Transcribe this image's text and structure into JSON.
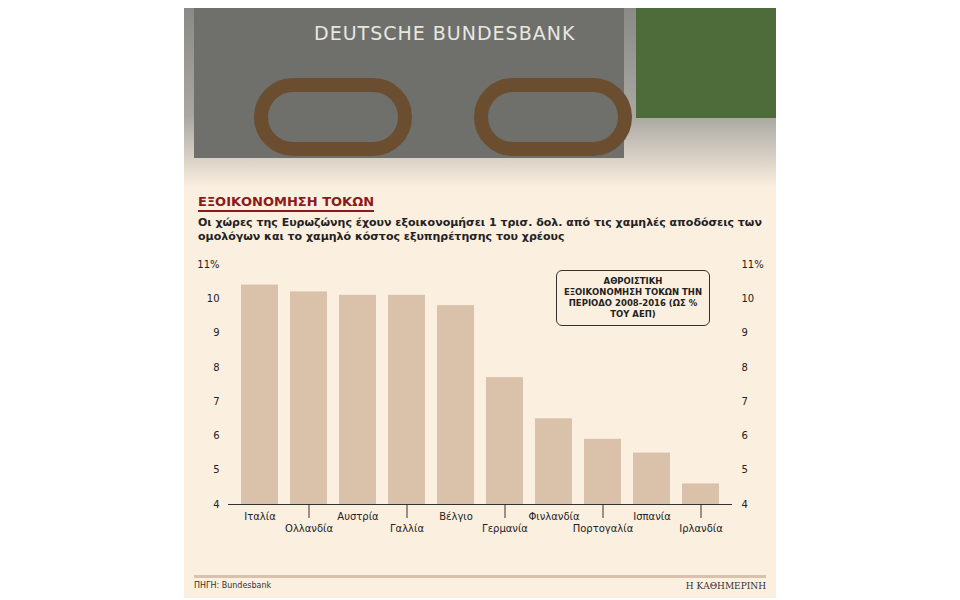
{
  "chart_data": {
    "type": "bar",
    "title": "ΕΞΟΙΚΟΝΟΜΗΣΗ ΤΟΚΩΝ",
    "subtitle": "Οι χώρες της Ευρωζώνης έχουν εξοικονομήσει 1 τρισ. δολ. από τις χαμηλές αποδόσεις των ομολόγων και το χαμηλό κόστος εξυπηρέτησης του χρέους",
    "annotations": [
      "ΑΘΡΟΙΣΤΙΚΗ ΕΞΟΙΚΟΝΟΜΗΣΗ ΤΟΚΩΝ ΤΗΝ ΠΕΡΙΟΔΟ 2008-2016 (ΩΣ % ΤΟΥ ΑΕΠ)",
      "DEUTSCHE BUNDESBANK"
    ],
    "source": "ΠΗΓΗ: Bundesbank",
    "credit": "Η ΚΑΘΗΜΕΡΙΝΗ",
    "categories": [
      "Ιταλία",
      "Ολλανδία",
      "Αυστρία",
      "Γαλλία",
      "Βέλγιο",
      "Γερμανία",
      "Φινλανδία",
      "Πορτογαλία",
      "Ισπανία",
      "Ιρλανδία"
    ],
    "values": [
      10.4,
      10.2,
      10.1,
      10.1,
      9.8,
      7.7,
      6.5,
      5.9,
      5.5,
      4.6
    ],
    "color": "#d9c1aa",
    "ylim": [
      4,
      11
    ],
    "yticks": [
      4,
      5,
      6,
      7,
      8,
      9,
      10,
      {
        "value": 11,
        "label": "11%"
      }
    ],
    "grid": false
  }
}
